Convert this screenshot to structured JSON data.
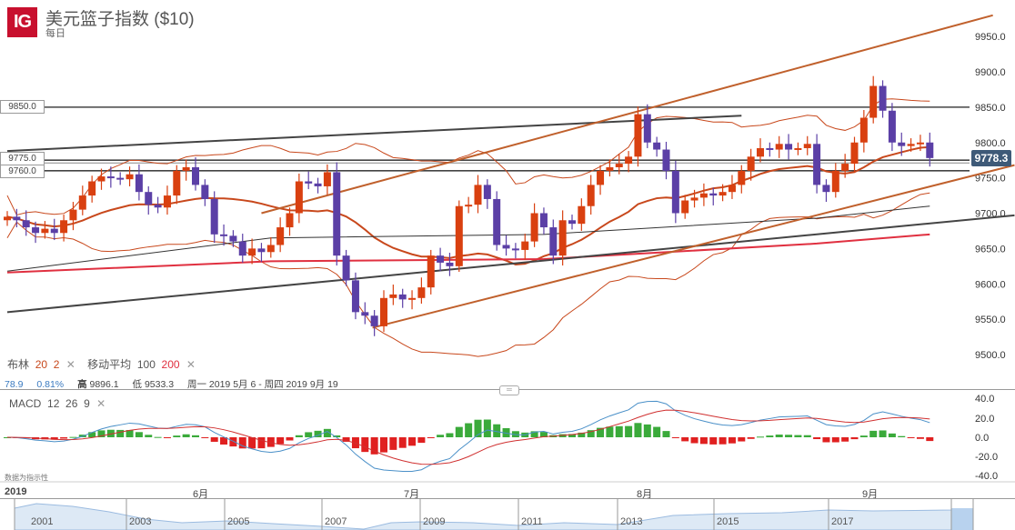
{
  "header": {
    "logo": "IG",
    "title": "美元篮子指数 ($10)",
    "period": "每日"
  },
  "price_axis": {
    "ticks": [
      9950,
      9900,
      9850,
      9800,
      9750,
      9700,
      9650,
      9600,
      9550,
      9500
    ],
    "current_price": "9778.3",
    "current_color": "#3e5a78"
  },
  "levels": [
    {
      "label": "9850.0",
      "value": 9850
    },
    {
      "label": "9775.0",
      "value": 9775
    },
    {
      "label": "9760.0",
      "value": 9760
    }
  ],
  "colors": {
    "up": "#d94010",
    "down": "#5b3fa6",
    "bollinger": "#c8481c",
    "ma100": "#333333",
    "ma200": "#e03040",
    "channel": "#c0602c",
    "trend": "#444444",
    "macd_line": "#4a90c8",
    "signal_line": "#d03030",
    "hist_pos": "#3aaa3a",
    "hist_neg": "#e02020"
  },
  "legend": {
    "boll_label": "布林",
    "boll_period": "20",
    "boll_dev": "2",
    "ma_label": "移动平均",
    "ma1": "100",
    "ma2": "200",
    "macd_label": "MACD",
    "macd_fast": "12",
    "macd_slow": "26",
    "macd_signal": "9"
  },
  "stats": {
    "change": "78.9",
    "change_pct": "0.81%",
    "high_label": "高",
    "high": "9896.1",
    "low_label": "低",
    "low": "9533.3",
    "range": "周一 2019 5月 6 - 周四 2019 9月 19"
  },
  "candles": {
    "closes": [
      9695,
      9690,
      9680,
      9672,
      9678,
      9672,
      9690,
      9705,
      9725,
      9745,
      9752,
      9750,
      9748,
      9755,
      9730,
      9712,
      9708,
      9725,
      9760,
      9765,
      9740,
      9720,
      9670,
      9668,
      9660,
      9640,
      9650,
      9645,
      9655,
      9680,
      9700,
      9745,
      9742,
      9738,
      9758,
      9640,
      9605,
      9560,
      9555,
      9540,
      9580,
      9585,
      9578,
      9580,
      9595,
      9640,
      9630,
      9625,
      9710,
      9712,
      9740,
      9720,
      9655,
      9650,
      9648,
      9660,
      9700,
      9680,
      9640,
      9690,
      9685,
      9710,
      9740,
      9760,
      9765,
      9770,
      9780,
      9840,
      9800,
      9790,
      9760,
      9700,
      9718,
      9722,
      9728,
      9725,
      9730,
      9740,
      9760,
      9780,
      9792,
      9790,
      9798,
      9790,
      9792,
      9798,
      9740,
      9730,
      9760,
      9770,
      9800,
      9835,
      9880,
      9845,
      9800,
      9795,
      9798,
      9800,
      9778
    ]
  },
  "ma100": [
    [
      0,
      9618
    ],
    [
      28,
      9665
    ],
    [
      57,
      9670
    ],
    [
      86,
      9693
    ],
    [
      98,
      9710
    ]
  ],
  "ma200": [
    [
      0,
      9616
    ],
    [
      28,
      9632
    ],
    [
      57,
      9635
    ],
    [
      86,
      9657
    ],
    [
      98,
      9670
    ]
  ],
  "trendlines": [
    {
      "kind": "trend",
      "from": [
        0,
        9788
      ],
      "to": [
        78,
        9838
      ]
    },
    {
      "kind": "trend",
      "from": [
        0,
        9560
      ],
      "to": [
        107,
        9697
      ]
    },
    {
      "kind": "channel",
      "from": [
        27,
        9700
      ],
      "to": [
        104.7,
        9980
      ]
    },
    {
      "kind": "channel",
      "from": [
        38.8,
        9538
      ],
      "to": [
        107,
        9768
      ]
    }
  ],
  "macd_axis": {
    "ticks": [
      "40.0",
      "20.0",
      "0.0",
      "-20.0",
      "-40.0"
    ]
  },
  "time_axis": {
    "year": "2019",
    "months": [
      {
        "label": "6月",
        "index": 20
      },
      {
        "label": "7月",
        "index": 43
      },
      {
        "label": "8月",
        "index": 67
      },
      {
        "label": "9月",
        "index": 91
      }
    ]
  },
  "note": "数据为指示性",
  "navigator": {
    "years": [
      "2001",
      "2003",
      "2005",
      "2007",
      "2009",
      "2011",
      "2013",
      "2015",
      "2017"
    ]
  }
}
